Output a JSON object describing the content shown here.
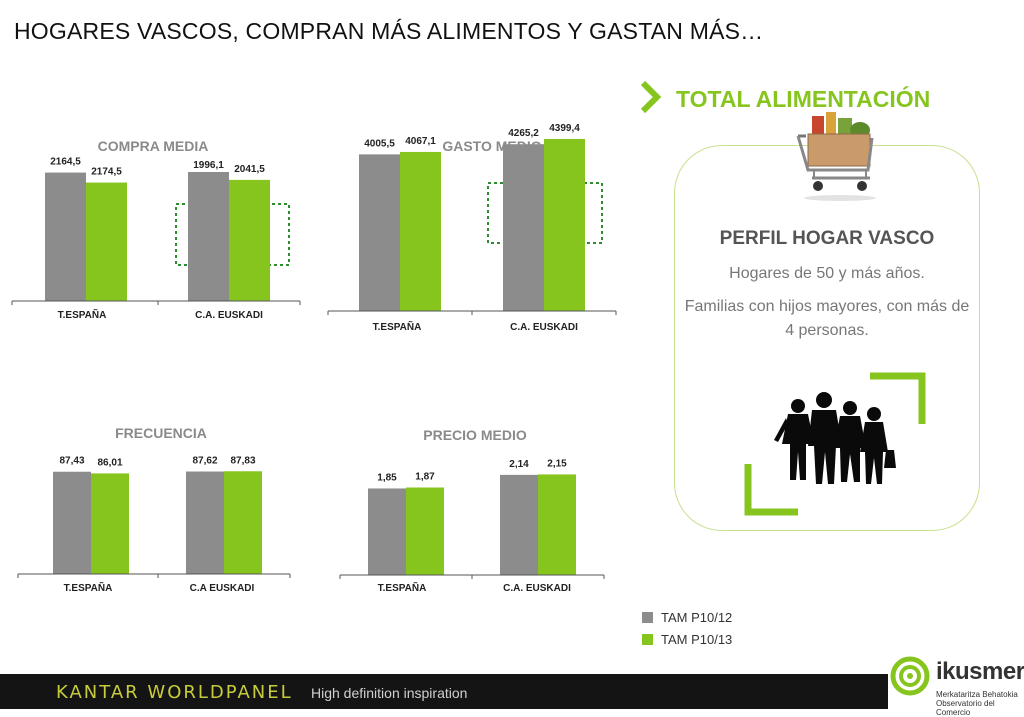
{
  "page_title": "HOGARES VASCOS, COMPRAN MÁS ALIMENTOS Y GASTAN MÁS…",
  "panel": {
    "title": "TOTAL ALIMENTACIÓN",
    "profile_title": "PERFIL HOGAR VASCO",
    "line1": "Hogares de 50 y más años.",
    "line2": "Familias con hijos mayores, con más de 4 personas."
  },
  "legend": [
    {
      "label": "TAM P10/12",
      "color": "#8c8c8c"
    },
    {
      "label": "TAM P10/13",
      "color": "#86c51e"
    }
  ],
  "footer": {
    "brand": "KANTAR WORLDPANEL",
    "tagline": "High definition inspiration"
  },
  "logo": {
    "name": "ikusmer",
    "sub1": "Merkataritza Behatokia",
    "sub2": "Observatorio del Comercio"
  },
  "colors": {
    "series1": "#8c8c8c",
    "series2": "#86c51e",
    "highlight": "#2e8b2e"
  },
  "chart_data": [
    {
      "type": "bar",
      "title": "COMPRA MEDIA",
      "categories": [
        "T.ESPAÑA",
        "C.A. EUSKADI"
      ],
      "series": [
        {
          "name": "TAM P10/12",
          "values": [
            2164.5,
            2174.5
          ]
        },
        {
          "name": "TAM P10/13",
          "values": [
            1996.1,
            2041.5
          ]
        }
      ],
      "labels": [
        [
          "2164,5",
          "2174,5"
        ],
        [
          "1996,1",
          "2041,5"
        ]
      ],
      "ylim": [
        0,
        3000
      ],
      "highlight_category": "C.A. EUSKADI"
    },
    {
      "type": "bar",
      "title": "GASTO MEDIO",
      "categories": [
        "T.ESPAÑA",
        "C.A. EUSKADI"
      ],
      "series": [
        {
          "name": "TAM P10/12",
          "values": [
            4005.5,
            4265.2
          ]
        },
        {
          "name": "TAM P10/13",
          "values": [
            4067.1,
            4399.4
          ]
        }
      ],
      "labels": [
        [
          "4005,5",
          "4067,1"
        ],
        [
          "4265,2",
          "4399,4"
        ]
      ],
      "ylim": [
        0,
        5600
      ],
      "highlight_category": "C.A. EUSKADI"
    },
    {
      "type": "bar",
      "title": "FRECUENCIA",
      "categories": [
        "T.ESPAÑA",
        "C.A EUSKADI"
      ],
      "series": [
        {
          "name": "TAM P10/12",
          "values": [
            87.43,
            87.62
          ]
        },
        {
          "name": "TAM P10/13",
          "values": [
            86.01,
            87.83
          ]
        }
      ],
      "labels": [
        [
          "87,43",
          "86,01"
        ],
        [
          "87,62",
          "87,83"
        ]
      ],
      "ylim": [
        0,
        112
      ]
    },
    {
      "type": "bar",
      "title": "PRECIO MEDIO",
      "categories": [
        "T.ESPAÑA",
        "C.A. EUSKADI"
      ],
      "series": [
        {
          "name": "TAM P10/12",
          "values": [
            1.85,
            2.14
          ]
        },
        {
          "name": "TAM P10/13",
          "values": [
            1.87,
            2.15
          ]
        }
      ],
      "labels": [
        [
          "1,85",
          "1,87"
        ],
        [
          "2,14",
          "2,15"
        ]
      ],
      "ylim": [
        0,
        2.8
      ]
    }
  ]
}
